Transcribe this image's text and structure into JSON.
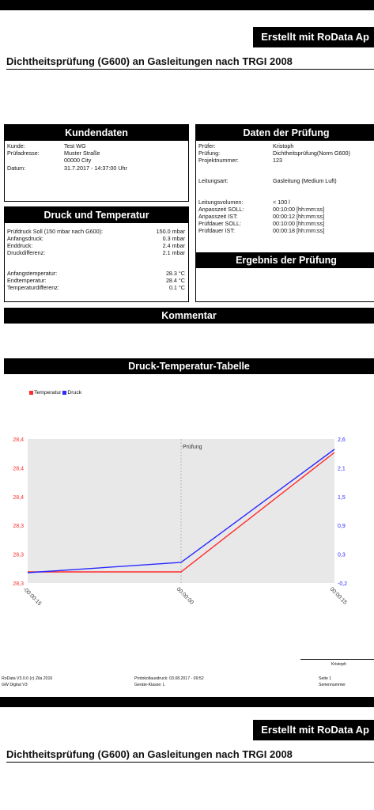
{
  "brand": "Erstellt mit RoData Ap",
  "title": "Dichtheitsprüfung (G600) an Gasleitungen nach TRGI 2008",
  "kundendaten": {
    "heading": "Kundendaten",
    "rows": [
      {
        "label": "Kunde:",
        "value": "Test WG"
      },
      {
        "label": "Prüfadresse:",
        "value": "Muster Straße"
      },
      {
        "label": "",
        "value": "00000 City"
      },
      {
        "label": "Datum:",
        "value": "31.7.2017 - 14:37:00 Uhr"
      }
    ]
  },
  "pruefung": {
    "heading": "Daten der Prüfung",
    "rows": [
      {
        "label": "Prüfer:",
        "value": "Kristoph"
      },
      {
        "label": "Prüfung:",
        "value": "Dichtheitsprüfung(Norm G600)"
      },
      {
        "label": "Projektnummer:",
        "value": "123"
      },
      {
        "label": "Leitungsart:",
        "value": "Gasleitung (Medium Luft)"
      },
      {
        "label": "Leitungsvolumen:",
        "value": "< 100 l"
      },
      {
        "label": "Anpasszeit SOLL:",
        "value": "00:10:00 [hh:mm:ss]"
      },
      {
        "label": "Anpasszeit IST:",
        "value": "00:00:12 [hh:mm:ss]"
      },
      {
        "label": "Prüfdauer SOLL:",
        "value": "00:10:00 [hh:mm:ss]"
      },
      {
        "label": "Prüfdauer IST:",
        "value": "00:00:18 [hh:mm:ss]"
      }
    ]
  },
  "druck": {
    "heading": "Druck und Temperatur",
    "rows": [
      {
        "label": "Prüfdruck Soll (150 mbar nach G600):",
        "value": "150.0 mbar"
      },
      {
        "label": "Anfangsdruck:",
        "value": "0.3 mbar"
      },
      {
        "label": "Enddruck:",
        "value": "2.4 mbar"
      },
      {
        "label": "Druckdifferenz:",
        "value": "2.1 mbar"
      },
      {
        "label": "Anfangstemperatur:",
        "value": "28.3 °C"
      },
      {
        "label": "Endtemperatur:",
        "value": "28.4 °C"
      },
      {
        "label": "Temperaturdifferenz:",
        "value": "0.1 °C"
      }
    ]
  },
  "ergebnis": {
    "heading": "Ergebnis der Prüfung"
  },
  "kommentar": {
    "heading": "Kommentar"
  },
  "table_heading": "Druck-Temperatur-Tabelle",
  "chart_data": {
    "type": "line",
    "title": "",
    "x": [
      "-00:00:15",
      "00:00:00",
      "00:00:15"
    ],
    "annotation": "Prüfung",
    "series": [
      {
        "name": "Temperatur",
        "axis": "left",
        "color": "#ff2a2a",
        "values": [
          28.3,
          28.3,
          28.4
        ]
      },
      {
        "name": "Druck",
        "axis": "right",
        "color": "#2a2aff",
        "values": [
          0.0,
          0.2,
          2.4
        ]
      }
    ],
    "y_left_ticks": [
      "28,4",
      "28,4",
      "28,4",
      "28,3",
      "28,3",
      "28,3"
    ],
    "y_right_ticks": [
      "2,6",
      "2,1",
      "1,5",
      "0,9",
      "0,3",
      "-0,2"
    ],
    "y_right_range": [
      -0.2,
      2.6
    ],
    "grid": "vertical at 00:00:00",
    "legend": "top-left",
    "colors": {
      "temperature": "#ff2a2a",
      "pressure": "#2a2aff",
      "plot_bg": "#e8e8e8"
    }
  },
  "signature_name": "Kristoph",
  "footer": {
    "app": "RoData V3.0.0 (c) Zila 2016",
    "device": "GW Digital V3",
    "print": "Protokollausdruck: 03.08.2017 - 09:52",
    "class": "Geräte-Klasse: L",
    "page": "Seite 1",
    "serial": "Seriennummer"
  }
}
